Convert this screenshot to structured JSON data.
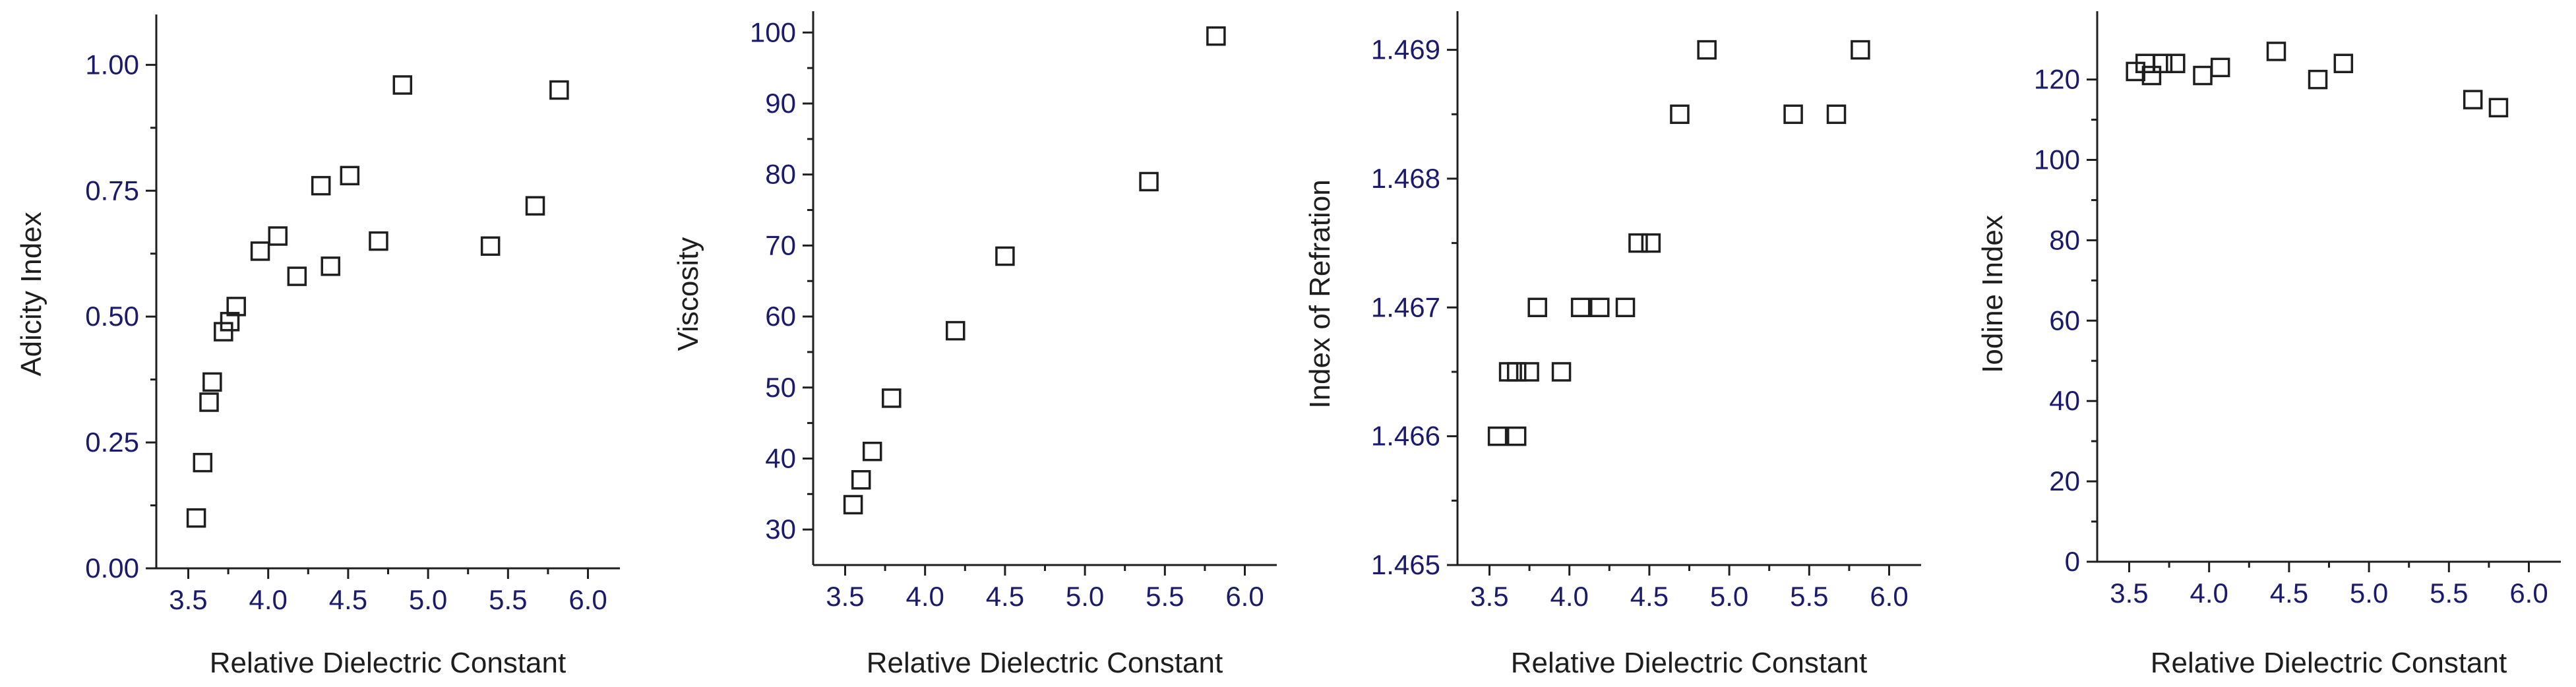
{
  "colors": {
    "axis": "#1e1e1e",
    "tick_label": "#1a1a6e",
    "marker": "#1e1e1e",
    "background": "#ffffff"
  },
  "chart_data": [
    {
      "type": "scatter",
      "marker": "open-square",
      "xlabel": "Relative Dielectric Constant",
      "ylabel": "Adicity Index",
      "xlim": [
        3.3,
        6.2
      ],
      "ylim": [
        0.0,
        1.1
      ],
      "xticks": [
        3.5,
        4.0,
        4.5,
        5.0,
        5.5,
        6.0
      ],
      "yticks": [
        0.0,
        0.25,
        0.5,
        0.75,
        1.0
      ],
      "xtick_labels": [
        "3.5",
        "4.0",
        "4.5",
        "5.0",
        "5.5",
        "6.0"
      ],
      "ytick_labels": [
        "0.00",
        "0.25",
        "0.50",
        "0.75",
        "1.00"
      ],
      "points": [
        {
          "x": 3.55,
          "y": 0.1
        },
        {
          "x": 3.59,
          "y": 0.21
        },
        {
          "x": 3.63,
          "y": 0.33
        },
        {
          "x": 3.65,
          "y": 0.37
        },
        {
          "x": 3.72,
          "y": 0.47
        },
        {
          "x": 3.76,
          "y": 0.49
        },
        {
          "x": 3.8,
          "y": 0.52
        },
        {
          "x": 3.95,
          "y": 0.63
        },
        {
          "x": 4.06,
          "y": 0.66
        },
        {
          "x": 4.18,
          "y": 0.58
        },
        {
          "x": 4.33,
          "y": 0.76
        },
        {
          "x": 4.39,
          "y": 0.6
        },
        {
          "x": 4.51,
          "y": 0.78
        },
        {
          "x": 4.69,
          "y": 0.65
        },
        {
          "x": 4.84,
          "y": 0.96
        },
        {
          "x": 5.39,
          "y": 0.64
        },
        {
          "x": 5.67,
          "y": 0.72
        },
        {
          "x": 5.82,
          "y": 0.95
        }
      ]
    },
    {
      "type": "scatter",
      "marker": "open-square",
      "xlabel": "Relative Dielectric Constant",
      "ylabel": "Viscosity",
      "xlim": [
        3.3,
        6.2
      ],
      "ylim": [
        25,
        103
      ],
      "xticks": [
        3.5,
        4.0,
        4.5,
        5.0,
        5.5,
        6.0
      ],
      "yticks": [
        30,
        40,
        50,
        60,
        70,
        80,
        90,
        100
      ],
      "xtick_labels": [
        "3.5",
        "4.0",
        "4.5",
        "5.0",
        "5.5",
        "6.0"
      ],
      "ytick_labels": [
        "30",
        "40",
        "50",
        "60",
        "70",
        "80",
        "90",
        "100"
      ],
      "points": [
        {
          "x": 3.55,
          "y": 33.5
        },
        {
          "x": 3.6,
          "y": 37.0
        },
        {
          "x": 3.67,
          "y": 41.0
        },
        {
          "x": 3.79,
          "y": 48.5
        },
        {
          "x": 4.19,
          "y": 58.0
        },
        {
          "x": 4.5,
          "y": 68.5
        },
        {
          "x": 5.4,
          "y": 79.0
        },
        {
          "x": 5.82,
          "y": 99.5
        }
      ]
    },
    {
      "type": "scatter",
      "marker": "open-square",
      "xlabel": "Relative Dielectric Constant",
      "ylabel": "Index of Refration",
      "xlim": [
        3.3,
        6.2
      ],
      "ylim": [
        1.465,
        1.4693
      ],
      "xticks": [
        3.5,
        4.0,
        4.5,
        5.0,
        5.5,
        6.0
      ],
      "yticks": [
        1.465,
        1.466,
        1.467,
        1.468,
        1.469
      ],
      "xtick_labels": [
        "3.5",
        "4.0",
        "4.5",
        "5.0",
        "5.5",
        "6.0"
      ],
      "ytick_labels": [
        "1.465",
        "1.466",
        "1.467",
        "1.468",
        "1.469"
      ],
      "points": [
        {
          "x": 3.55,
          "y": 1.466
        },
        {
          "x": 3.67,
          "y": 1.466
        },
        {
          "x": 3.62,
          "y": 1.4665
        },
        {
          "x": 3.67,
          "y": 1.4665
        },
        {
          "x": 3.75,
          "y": 1.4665
        },
        {
          "x": 3.8,
          "y": 1.467
        },
        {
          "x": 3.95,
          "y": 1.4665
        },
        {
          "x": 4.07,
          "y": 1.467
        },
        {
          "x": 4.19,
          "y": 1.467
        },
        {
          "x": 4.35,
          "y": 1.467
        },
        {
          "x": 4.43,
          "y": 1.4675
        },
        {
          "x": 4.51,
          "y": 1.4675
        },
        {
          "x": 4.69,
          "y": 1.4685
        },
        {
          "x": 4.86,
          "y": 1.469
        },
        {
          "x": 5.4,
          "y": 1.4685
        },
        {
          "x": 5.67,
          "y": 1.4685
        },
        {
          "x": 5.82,
          "y": 1.469
        }
      ]
    },
    {
      "type": "scatter",
      "marker": "open-square",
      "xlabel": "Relative Dielectric Constant",
      "ylabel": "Iodine Index",
      "xlim": [
        3.3,
        6.2
      ],
      "ylim": [
        0,
        137
      ],
      "xticks": [
        3.5,
        4.0,
        4.5,
        5.0,
        5.5,
        6.0
      ],
      "yticks": [
        0,
        20,
        40,
        60,
        80,
        100,
        120
      ],
      "xtick_labels": [
        "3.5",
        "4.0",
        "4.5",
        "5.0",
        "5.5",
        "6.0"
      ],
      "ytick_labels": [
        "0",
        "20",
        "40",
        "60",
        "80",
        "100",
        "120"
      ],
      "points": [
        {
          "x": 3.54,
          "y": 122
        },
        {
          "x": 3.6,
          "y": 124
        },
        {
          "x": 3.64,
          "y": 121
        },
        {
          "x": 3.71,
          "y": 124
        },
        {
          "x": 3.79,
          "y": 124
        },
        {
          "x": 3.96,
          "y": 121
        },
        {
          "x": 4.07,
          "y": 123
        },
        {
          "x": 4.42,
          "y": 127
        },
        {
          "x": 4.68,
          "y": 120
        },
        {
          "x": 4.84,
          "y": 124
        },
        {
          "x": 5.65,
          "y": 115
        },
        {
          "x": 5.81,
          "y": 113
        }
      ]
    }
  ]
}
